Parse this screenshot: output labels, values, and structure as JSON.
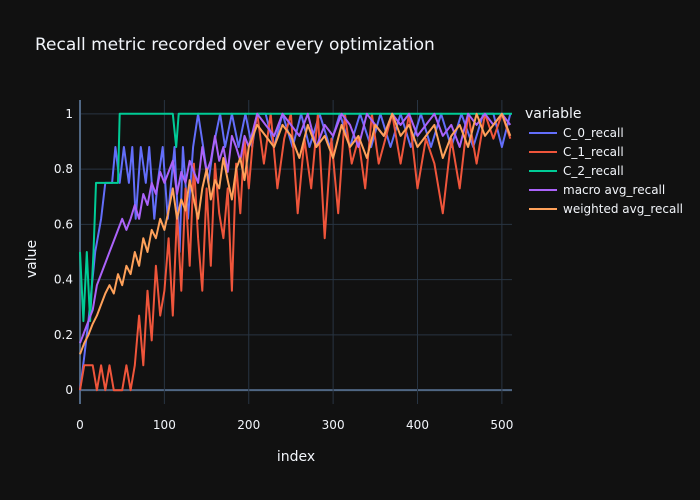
{
  "chart_data": {
    "type": "line",
    "title": "Recall metric recorded over every optimization",
    "xlabel": "index",
    "ylabel": "value",
    "xlim": [
      0,
      512
    ],
    "ylim": [
      -0.05,
      1.05
    ],
    "xticks": [
      0,
      100,
      200,
      300,
      400,
      500
    ],
    "yticks": [
      0,
      0.2,
      0.4,
      0.6,
      0.8,
      1
    ],
    "xtick_labels": [
      "0",
      "100",
      "200",
      "300",
      "400",
      "500"
    ],
    "ytick_labels": [
      "0",
      "0.2",
      "0.4",
      "0.6",
      "0.8",
      "1"
    ],
    "grid": true,
    "legend": {
      "title": "variable",
      "placement": "right"
    },
    "series": [
      {
        "name": "C_0_recall",
        "color": "#636efa",
        "points": [
          [
            0,
            0
          ],
          [
            5,
            0.12
          ],
          [
            10,
            0.25
          ],
          [
            18,
            0.5
          ],
          [
            25,
            0.62
          ],
          [
            30,
            0.75
          ],
          [
            38,
            0.75
          ],
          [
            42,
            0.88
          ],
          [
            47,
            0.75
          ],
          [
            52,
            0.88
          ],
          [
            58,
            0.75
          ],
          [
            62,
            0.88
          ],
          [
            66,
            0.62
          ],
          [
            72,
            0.88
          ],
          [
            78,
            0.75
          ],
          [
            82,
            0.88
          ],
          [
            88,
            0.62
          ],
          [
            92,
            0.75
          ],
          [
            98,
            0.88
          ],
          [
            104,
            0.62
          ],
          [
            108,
            0.75
          ],
          [
            112,
            0.88
          ],
          [
            118,
            0.5
          ],
          [
            122,
            0.88
          ],
          [
            128,
            0.62
          ],
          [
            134,
            0.88
          ],
          [
            140,
            1
          ],
          [
            146,
            0.88
          ],
          [
            152,
            0.75
          ],
          [
            158,
            0.88
          ],
          [
            166,
            1
          ],
          [
            172,
            0.88
          ],
          [
            180,
            1
          ],
          [
            188,
            0.88
          ],
          [
            196,
            1
          ],
          [
            204,
            0.88
          ],
          [
            210,
            1
          ],
          [
            220,
            1
          ],
          [
            230,
            0.88
          ],
          [
            240,
            1
          ],
          [
            252,
            0.88
          ],
          [
            262,
            1
          ],
          [
            272,
            0.88
          ],
          [
            284,
            1
          ],
          [
            296,
            0.88
          ],
          [
            308,
            1
          ],
          [
            320,
            0.88
          ],
          [
            332,
            1
          ],
          [
            345,
            0.88
          ],
          [
            356,
            1
          ],
          [
            368,
            0.88
          ],
          [
            380,
            1
          ],
          [
            392,
            0.88
          ],
          [
            404,
            1
          ],
          [
            416,
            0.88
          ],
          [
            428,
            1
          ],
          [
            440,
            0.88
          ],
          [
            452,
            1
          ],
          [
            466,
            0.88
          ],
          [
            478,
            1
          ],
          [
            490,
            1
          ],
          [
            500,
            0.88
          ],
          [
            510,
            1
          ]
        ]
      },
      {
        "name": "C_1_recall",
        "color": "#ef553b",
        "points": [
          [
            0,
            0
          ],
          [
            5,
            0.09
          ],
          [
            15,
            0.09
          ],
          [
            20,
            0
          ],
          [
            25,
            0.09
          ],
          [
            30,
            0
          ],
          [
            35,
            0.09
          ],
          [
            40,
            0
          ],
          [
            50,
            0
          ],
          [
            55,
            0.09
          ],
          [
            60,
            0
          ],
          [
            65,
            0.09
          ],
          [
            70,
            0.27
          ],
          [
            75,
            0.09
          ],
          [
            80,
            0.36
          ],
          [
            85,
            0.18
          ],
          [
            90,
            0.45
          ],
          [
            95,
            0.27
          ],
          [
            100,
            0.36
          ],
          [
            105,
            0.55
          ],
          [
            110,
            0.27
          ],
          [
            115,
            0.64
          ],
          [
            120,
            0.36
          ],
          [
            125,
            0.73
          ],
          [
            130,
            0.45
          ],
          [
            135,
            0.82
          ],
          [
            140,
            0.55
          ],
          [
            145,
            0.36
          ],
          [
            150,
            0.73
          ],
          [
            155,
            0.45
          ],
          [
            160,
            0.82
          ],
          [
            165,
            0.64
          ],
          [
            170,
            0.55
          ],
          [
            175,
            0.73
          ],
          [
            180,
            0.36
          ],
          [
            185,
            0.82
          ],
          [
            190,
            0.64
          ],
          [
            195,
            0.91
          ],
          [
            200,
            0.73
          ],
          [
            205,
            0.91
          ],
          [
            210,
            1
          ],
          [
            218,
            0.82
          ],
          [
            226,
            1
          ],
          [
            234,
            0.73
          ],
          [
            242,
            0.91
          ],
          [
            250,
            1
          ],
          [
            258,
            0.64
          ],
          [
            266,
            0.91
          ],
          [
            274,
            0.73
          ],
          [
            282,
            1
          ],
          [
            290,
            0.55
          ],
          [
            298,
            0.91
          ],
          [
            306,
            0.64
          ],
          [
            314,
            1
          ],
          [
            322,
            0.82
          ],
          [
            330,
            0.91
          ],
          [
            338,
            0.73
          ],
          [
            346,
            1
          ],
          [
            354,
            0.82
          ],
          [
            362,
            0.91
          ],
          [
            370,
            1
          ],
          [
            380,
            0.82
          ],
          [
            390,
            1
          ],
          [
            400,
            0.73
          ],
          [
            410,
            0.91
          ],
          [
            420,
            0.82
          ],
          [
            430,
            0.64
          ],
          [
            440,
            0.91
          ],
          [
            450,
            0.73
          ],
          [
            460,
            1
          ],
          [
            470,
            0.82
          ],
          [
            480,
            1
          ],
          [
            490,
            0.91
          ],
          [
            500,
            1
          ],
          [
            510,
            0.91
          ]
        ]
      },
      {
        "name": "C_2_recall",
        "color": "#00cc96",
        "points": [
          [
            0,
            0.5
          ],
          [
            4,
            0.25
          ],
          [
            8,
            0.5
          ],
          [
            12,
            0.25
          ],
          [
            16,
            0.5
          ],
          [
            19,
            0.75
          ],
          [
            45,
            0.75
          ],
          [
            47,
            1
          ],
          [
            110,
            1
          ],
          [
            114,
            0.88
          ],
          [
            117,
            1
          ],
          [
            512,
            1
          ]
        ]
      },
      {
        "name": "macro avg_recall",
        "color": "#ab63fa",
        "points": [
          [
            0,
            0.17
          ],
          [
            5,
            0.21
          ],
          [
            10,
            0.25
          ],
          [
            15,
            0.29
          ],
          [
            20,
            0.38
          ],
          [
            25,
            0.42
          ],
          [
            30,
            0.46
          ],
          [
            35,
            0.5
          ],
          [
            40,
            0.54
          ],
          [
            45,
            0.58
          ],
          [
            50,
            0.62
          ],
          [
            55,
            0.58
          ],
          [
            60,
            0.62
          ],
          [
            65,
            0.67
          ],
          [
            70,
            0.62
          ],
          [
            75,
            0.71
          ],
          [
            80,
            0.67
          ],
          [
            85,
            0.75
          ],
          [
            90,
            0.71
          ],
          [
            95,
            0.79
          ],
          [
            100,
            0.75
          ],
          [
            105,
            0.79
          ],
          [
            110,
            0.83
          ],
          [
            115,
            0.71
          ],
          [
            120,
            0.79
          ],
          [
            125,
            0.75
          ],
          [
            130,
            0.83
          ],
          [
            135,
            0.79
          ],
          [
            140,
            0.75
          ],
          [
            145,
            0.88
          ],
          [
            150,
            0.79
          ],
          [
            155,
            0.83
          ],
          [
            160,
            0.92
          ],
          [
            165,
            0.83
          ],
          [
            170,
            0.88
          ],
          [
            175,
            0.79
          ],
          [
            180,
            0.92
          ],
          [
            185,
            0.88
          ],
          [
            190,
            0.83
          ],
          [
            195,
            0.92
          ],
          [
            200,
            0.88
          ],
          [
            210,
            1
          ],
          [
            220,
            0.96
          ],
          [
            230,
            0.92
          ],
          [
            240,
            1
          ],
          [
            250,
            0.96
          ],
          [
            260,
            0.92
          ],
          [
            270,
            1
          ],
          [
            280,
            0.88
          ],
          [
            290,
            0.96
          ],
          [
            300,
            0.92
          ],
          [
            310,
            1
          ],
          [
            320,
            0.96
          ],
          [
            330,
            0.88
          ],
          [
            340,
            1
          ],
          [
            350,
            0.96
          ],
          [
            360,
            0.92
          ],
          [
            370,
            1
          ],
          [
            380,
            0.96
          ],
          [
            390,
            1
          ],
          [
            400,
            0.92
          ],
          [
            410,
            0.96
          ],
          [
            420,
            1
          ],
          [
            430,
            0.92
          ],
          [
            440,
            0.96
          ],
          [
            450,
            0.88
          ],
          [
            460,
            1
          ],
          [
            470,
            0.96
          ],
          [
            480,
            1
          ],
          [
            490,
            0.96
          ],
          [
            500,
            1
          ],
          [
            510,
            0.96
          ]
        ]
      },
      {
        "name": "weighted avg_recall",
        "color": "#ffa15a",
        "points": [
          [
            0,
            0.13
          ],
          [
            5,
            0.17
          ],
          [
            10,
            0.2
          ],
          [
            15,
            0.24
          ],
          [
            20,
            0.27
          ],
          [
            25,
            0.31
          ],
          [
            30,
            0.35
          ],
          [
            35,
            0.38
          ],
          [
            40,
            0.35
          ],
          [
            45,
            0.42
          ],
          [
            50,
            0.38
          ],
          [
            55,
            0.45
          ],
          [
            60,
            0.42
          ],
          [
            65,
            0.5
          ],
          [
            70,
            0.45
          ],
          [
            75,
            0.55
          ],
          [
            80,
            0.5
          ],
          [
            85,
            0.58
          ],
          [
            90,
            0.55
          ],
          [
            95,
            0.62
          ],
          [
            100,
            0.58
          ],
          [
            105,
            0.65
          ],
          [
            110,
            0.73
          ],
          [
            115,
            0.62
          ],
          [
            120,
            0.69
          ],
          [
            125,
            0.65
          ],
          [
            130,
            0.76
          ],
          [
            135,
            0.69
          ],
          [
            140,
            0.62
          ],
          [
            145,
            0.73
          ],
          [
            150,
            0.8
          ],
          [
            155,
            0.69
          ],
          [
            160,
            0.76
          ],
          [
            165,
            0.73
          ],
          [
            170,
            0.84
          ],
          [
            175,
            0.76
          ],
          [
            180,
            0.69
          ],
          [
            185,
            0.8
          ],
          [
            190,
            0.84
          ],
          [
            195,
            0.76
          ],
          [
            200,
            0.88
          ],
          [
            210,
            0.96
          ],
          [
            220,
            0.92
          ],
          [
            230,
            0.88
          ],
          [
            240,
            0.96
          ],
          [
            250,
            0.92
          ],
          [
            260,
            0.84
          ],
          [
            270,
            0.96
          ],
          [
            280,
            0.88
          ],
          [
            290,
            0.92
          ],
          [
            300,
            0.84
          ],
          [
            310,
            0.96
          ],
          [
            320,
            0.88
          ],
          [
            330,
            0.92
          ],
          [
            340,
            0.84
          ],
          [
            350,
            0.96
          ],
          [
            360,
            0.92
          ],
          [
            370,
            1
          ],
          [
            380,
            0.92
          ],
          [
            390,
            0.96
          ],
          [
            400,
            0.88
          ],
          [
            410,
            0.92
          ],
          [
            420,
            0.96
          ],
          [
            430,
            0.84
          ],
          [
            440,
            0.92
          ],
          [
            450,
            0.96
          ],
          [
            460,
            0.88
          ],
          [
            470,
            1
          ],
          [
            480,
            0.92
          ],
          [
            490,
            0.96
          ],
          [
            500,
            1
          ],
          [
            510,
            0.92
          ]
        ]
      }
    ]
  }
}
